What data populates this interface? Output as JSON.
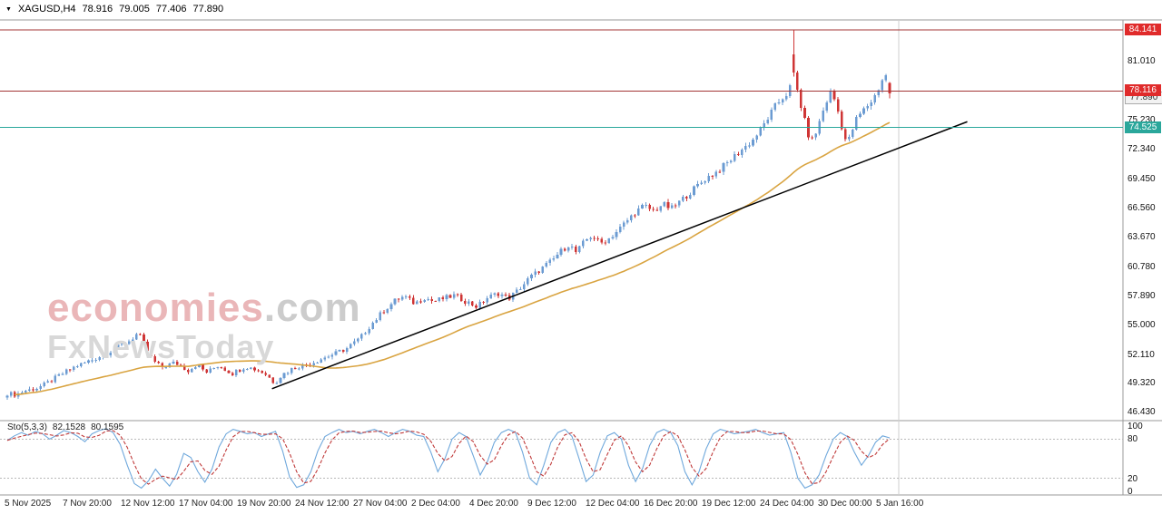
{
  "header": {
    "dropdown_icon": "▼",
    "symbol": "XAGUSD,H4",
    "open": "78.916",
    "high": "79.005",
    "low": "77.406",
    "close": "77.890"
  },
  "watermark": {
    "brand": "economies",
    "tld": ".com",
    "line2": "FxNewsToday"
  },
  "price_axis": {
    "labels": [
      81.01,
      75.23,
      72.34,
      69.45,
      66.56,
      63.67,
      60.78,
      57.89,
      55.0,
      52.11,
      49.32,
      46.43
    ],
    "current_price": 77.89
  },
  "levels": [
    {
      "value": 84.141,
      "color": "#a33636",
      "badge_bg": "#e02b2b"
    },
    {
      "value": 78.116,
      "color": "#a33636",
      "badge_bg": "#e02b2b"
    },
    {
      "value": 74.525,
      "color": "#2aa79b",
      "badge_bg": "#2aa79b"
    }
  ],
  "time_axis": {
    "labels": [
      "5 Nov 2025",
      "7 Nov 20:00",
      "12 Nov 12:00",
      "17 Nov 04:00",
      "19 Nov 20:00",
      "24 Nov 12:00",
      "27 Nov 04:00",
      "2 Dec 04:00",
      "4 Dec 20:00",
      "9 Dec 12:00",
      "12 Dec 04:00",
      "16 Dec 20:00",
      "19 Dec 12:00",
      "24 Dec 04:00",
      "30 Dec 00:00",
      "5 Jan 16:00"
    ]
  },
  "indicator": {
    "name": "Sto(5,3,3)",
    "k_value": "82.1528",
    "d_value": "80.1595",
    "axis_labels": [
      100,
      80,
      20,
      0
    ],
    "dashed_levels": [
      80,
      20
    ]
  },
  "chart_data": {
    "type": "candlestick",
    "symbol": "XAGUSD",
    "timeframe": "H4",
    "title": "XAGUSD,H4",
    "current_ohlc": {
      "open": 78.916,
      "high": 79.005,
      "low": 77.406,
      "close": 77.89
    },
    "visible_price_range": [
      46.4,
      85.3
    ],
    "candle_count": 240,
    "up_color": "#6b9bd2",
    "down_color": "#cf3535",
    "close_path": [
      [
        0.0,
        48.35
      ],
      [
        0.01,
        48.2
      ],
      [
        0.02,
        48.6
      ],
      [
        0.035,
        48.9
      ],
      [
        0.05,
        49.6
      ],
      [
        0.065,
        50.4
      ],
      [
        0.08,
        51.1
      ],
      [
        0.095,
        51.6
      ],
      [
        0.11,
        52.2
      ],
      [
        0.125,
        52.9
      ],
      [
        0.14,
        53.6
      ],
      [
        0.148,
        54.3
      ],
      [
        0.155,
        53.2
      ],
      [
        0.165,
        51.6
      ],
      [
        0.175,
        50.9
      ],
      [
        0.19,
        51.4
      ],
      [
        0.205,
        50.6
      ],
      [
        0.215,
        51.2
      ],
      [
        0.225,
        50.4
      ],
      [
        0.24,
        51.1
      ],
      [
        0.255,
        50.3
      ],
      [
        0.27,
        51.0
      ],
      [
        0.285,
        50.6
      ],
      [
        0.295,
        50.1
      ],
      [
        0.303,
        49.35
      ],
      [
        0.312,
        50.2
      ],
      [
        0.325,
        50.9
      ],
      [
        0.34,
        51.2
      ],
      [
        0.355,
        51.7
      ],
      [
        0.37,
        52.2
      ],
      [
        0.385,
        52.8
      ],
      [
        0.4,
        53.8
      ],
      [
        0.413,
        55.2
      ],
      [
        0.428,
        56.6
      ],
      [
        0.44,
        57.5
      ],
      [
        0.45,
        57.9
      ],
      [
        0.462,
        57.2
      ],
      [
        0.472,
        57.8
      ],
      [
        0.483,
        57.4
      ],
      [
        0.495,
        57.7
      ],
      [
        0.507,
        58.0
      ],
      [
        0.52,
        57.4
      ],
      [
        0.532,
        56.9
      ],
      [
        0.545,
        57.8
      ],
      [
        0.557,
        58.2
      ],
      [
        0.568,
        57.7
      ],
      [
        0.58,
        58.6
      ],
      [
        0.593,
        59.8
      ],
      [
        0.605,
        60.6
      ],
      [
        0.617,
        61.4
      ],
      [
        0.628,
        62.4
      ],
      [
        0.637,
        63.0
      ],
      [
        0.645,
        62.2
      ],
      [
        0.655,
        63.4
      ],
      [
        0.663,
        63.9
      ],
      [
        0.672,
        63.1
      ],
      [
        0.682,
        63.6
      ],
      [
        0.692,
        64.4
      ],
      [
        0.703,
        65.4
      ],
      [
        0.713,
        66.3
      ],
      [
        0.722,
        66.8
      ],
      [
        0.733,
        66.3
      ],
      [
        0.743,
        67.0
      ],
      [
        0.752,
        66.5
      ],
      [
        0.762,
        67.2
      ],
      [
        0.772,
        68.0
      ],
      [
        0.782,
        68.8
      ],
      [
        0.793,
        69.6
      ],
      [
        0.803,
        70.1
      ],
      [
        0.813,
        70.8
      ],
      [
        0.823,
        71.6
      ],
      [
        0.833,
        72.4
      ],
      [
        0.843,
        73.1
      ],
      [
        0.853,
        74.2
      ],
      [
        0.863,
        75.6
      ],
      [
        0.872,
        76.8
      ],
      [
        0.88,
        77.6
      ],
      [
        0.886,
        78.1
      ],
      [
        0.891,
        79.8
      ],
      [
        0.894,
        78.7
      ],
      [
        0.898,
        77.2
      ],
      [
        0.903,
        75.4
      ],
      [
        0.908,
        73.8
      ],
      [
        0.913,
        73.2
      ],
      [
        0.918,
        74.4
      ],
      [
        0.923,
        75.8
      ],
      [
        0.928,
        77.0
      ],
      [
        0.933,
        77.9
      ],
      [
        0.938,
        77.2
      ],
      [
        0.943,
        75.6
      ],
      [
        0.948,
        73.8
      ],
      [
        0.952,
        72.9
      ],
      [
        0.957,
        74.1
      ],
      [
        0.962,
        75.3
      ],
      [
        0.967,
        75.9
      ],
      [
        0.972,
        76.4
      ],
      [
        0.977,
        76.9
      ],
      [
        0.982,
        77.4
      ],
      [
        0.987,
        78.3
      ],
      [
        0.992,
        79.3
      ],
      [
        0.996,
        79.6
      ],
      [
        1.0,
        77.89
      ]
    ],
    "spike": {
      "t": 0.893,
      "high": 84.141,
      "body_open_offset": 1.8
    },
    "horizontal_lines": [
      84.141,
      78.116,
      74.525
    ],
    "trendline": {
      "t1": 0.3,
      "price1": 48.8,
      "t2": 1.088,
      "price2": 75.1,
      "color": "#000000"
    },
    "moving_average": {
      "period": 50,
      "color": "#d9a441"
    },
    "stochastic": {
      "k_color": "#6fa8dc",
      "d_color": "#c03a3a",
      "signal_period": 3,
      "last_k": 82.1528,
      "last_d": 80.1595,
      "k": [
        78,
        85,
        90,
        86,
        92,
        88,
        80,
        86,
        93,
        90,
        84,
        76,
        88,
        93,
        96,
        90,
        72,
        40,
        12,
        5,
        16,
        34,
        20,
        8,
        26,
        58,
        52,
        30,
        14,
        34,
        68,
        88,
        95,
        92,
        88,
        90,
        84,
        88,
        92,
        62,
        22,
        6,
        10,
        30,
        62,
        84,
        90,
        95,
        90,
        92,
        88,
        92,
        95,
        90,
        84,
        90,
        95,
        92,
        86,
        84,
        60,
        30,
        50,
        80,
        90,
        84,
        55,
        25,
        45,
        75,
        90,
        95,
        90,
        60,
        20,
        10,
        40,
        75,
        90,
        95,
        84,
        50,
        15,
        25,
        60,
        85,
        90,
        80,
        40,
        15,
        35,
        70,
        90,
        95,
        90,
        70,
        30,
        10,
        30,
        65,
        88,
        95,
        92,
        88,
        90,
        92,
        95,
        90,
        86,
        88,
        90,
        60,
        20,
        5,
        10,
        25,
        55,
        80,
        90,
        84,
        60,
        40,
        55,
        75,
        85,
        82
      ]
    }
  }
}
